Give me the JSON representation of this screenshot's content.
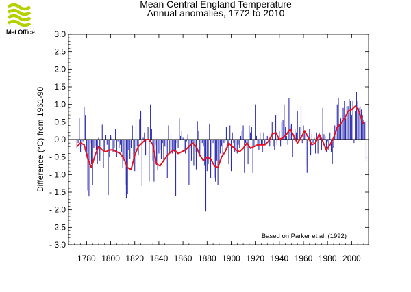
{
  "header": {
    "logo_text": "Met Office"
  },
  "chart_data": {
    "type": "bar",
    "title": "Mean Central England Temperature",
    "subtitle": "Annual anomalies, 1772 to 2010",
    "xlabel": "",
    "ylabel": "Difference (°C) from 1961-90",
    "xlim": [
      1765,
      2014
    ],
    "ylim": [
      -3.0,
      3.0
    ],
    "yticks": [
      3.0,
      2.5,
      2.0,
      1.5,
      1.0,
      0.5,
      0.0,
      -0.5,
      -1.0,
      -1.5,
      -2.0,
      -2.5,
      -3.0
    ],
    "yticklabels": [
      "3.0",
      "2.5",
      "2.0",
      "1.5",
      "1.0",
      "0.5",
      "0.0",
      "- 0.5",
      "- 1.0",
      "- 1.5",
      "- 2.0",
      "- 2.5",
      "- 3.0"
    ],
    "xticks": [
      1780,
      1800,
      1820,
      1840,
      1860,
      1880,
      1900,
      1920,
      1940,
      1960,
      1980,
      2000
    ],
    "annotation": "Based on Parker et al. (1992)",
    "grid": false,
    "bar_color": "#2c2cb0",
    "smooth_color": "#e8101a",
    "zero_line_color": "#000000",
    "series": [
      {
        "type": "bar",
        "x_start": 1772,
        "values": [
          -0.25,
          -0.1,
          0.6,
          -0.35,
          -0.2,
          -0.05,
          0.92,
          0.7,
          -0.35,
          -1.45,
          -1.62,
          -0.1,
          -0.7,
          -1.3,
          -0.25,
          -0.18,
          -0.3,
          -0.7,
          0.05,
          -0.6,
          -0.45,
          0.42,
          -0.8,
          -0.3,
          0.12,
          -0.15,
          -1.58,
          -0.5,
          0.12,
          0.05,
          -0.35,
          -0.25,
          0.3,
          -0.5,
          -0.05,
          -0.25,
          -0.15,
          -0.35,
          -0.8,
          -0.6,
          -1.3,
          -1.68,
          -1.55,
          -0.3,
          -0.55,
          -0.25,
          0.4,
          -0.6,
          -0.9,
          0.58,
          -0.2,
          -0.45,
          0.58,
          0.82,
          -1.32,
          0.05,
          0.2,
          -0.45,
          -0.05,
          0.36,
          -1.2,
          1.0,
          0.3,
          -0.6,
          -1.2,
          -0.15,
          -0.7,
          -0.88,
          -0.4,
          -0.3,
          -0.55,
          -0.1,
          -0.6,
          -0.2,
          -0.25,
          -1.1,
          0.4,
          -0.4,
          0.15,
          -0.4,
          -0.3,
          -0.35,
          -1.6,
          -0.1,
          -0.25,
          0.6,
          0.1,
          0.25,
          0.05,
          -0.35,
          -0.4,
          -0.05,
          0.15,
          -1.3,
          -0.25,
          -0.6,
          -0.05,
          -0.75,
          -0.35,
          -0.85,
          0.52,
          0.25,
          -0.45,
          -0.3,
          -0.1,
          -0.2,
          -0.75,
          -2.05,
          -0.9,
          -0.7,
          0.45,
          -1.1,
          -0.5,
          -0.1,
          -1.1,
          -1.2,
          -0.6,
          -1.3,
          -0.65,
          -0.4,
          -0.2,
          -0.5,
          -0.1,
          -0.05,
          0.35,
          -0.25,
          -0.7,
          0.4,
          -0.9,
          0.2,
          -0.1,
          -0.35,
          -0.15,
          -0.4,
          -0.15,
          -0.25,
          0.1,
          0.25,
          0.4,
          -0.95,
          -0.1,
          -0.25,
          -0.7,
          0.4,
          0.2,
          0.35,
          -0.95,
          -0.2,
          1.0,
          0.1,
          -0.2,
          -0.3,
          0.2,
          -0.15,
          -0.35,
          0.2,
          -0.15,
          0.05,
          0.1,
          -0.05,
          -0.2,
          -0.1,
          0.5,
          -0.2,
          -0.3,
          0.7,
          -0.15,
          0.1,
          0.25,
          -0.2,
          0.5,
          0.55,
          1.0,
          0.35,
          0.1,
          -0.15,
          1.18,
          0.4,
          0.45,
          -0.5,
          0.05,
          0.3,
          0.2,
          0.8,
          -0.05,
          0.35,
          0.95,
          -0.1,
          0.4,
          0.25,
          -0.75,
          -0.95,
          0.1,
          0.3,
          -0.45,
          0.15,
          -0.1,
          0.05,
          -0.4,
          0.2,
          -0.4,
          0.2,
          0.1,
          -0.3,
          0.9,
          0.15,
          0.1,
          -0.35,
          -0.05,
          -0.3,
          0.2,
          -0.35,
          -0.7,
          -0.25,
          0.4,
          0.15,
          1.0,
          1.18,
          0.4,
          0.6,
          0.45,
          0.9,
          1.1,
          0.6,
          0.95,
          0.95,
          1.15,
          1.1,
          0.7,
          1.1,
          -0.1,
          0.8,
          1.35,
          1.1,
          0.9,
          0.95,
          0.85,
          0.7,
          0.55,
          0.5,
          -0.62
        ]
      },
      {
        "type": "line",
        "name": "",
        "x": [
          1772,
          1775,
          1778,
          1781,
          1784,
          1787,
          1790,
          1793,
          1796,
          1799,
          1802,
          1805,
          1808,
          1811,
          1814,
          1817,
          1820,
          1823,
          1826,
          1829,
          1832,
          1835,
          1838,
          1841,
          1844,
          1847,
          1850,
          1853,
          1856,
          1859,
          1862,
          1865,
          1868,
          1871,
          1874,
          1877,
          1880,
          1883,
          1886,
          1889,
          1892,
          1895,
          1898,
          1901,
          1904,
          1907,
          1910,
          1913,
          1916,
          1919,
          1922,
          1925,
          1928,
          1931,
          1934,
          1937,
          1940,
          1943,
          1946,
          1949,
          1952,
          1955,
          1958,
          1961,
          1964,
          1967,
          1970,
          1973,
          1976,
          1979,
          1982,
          1985,
          1988,
          1991,
          1994,
          1997,
          2000,
          2003,
          2006,
          2009,
          2010
        ],
        "y": [
          -0.2,
          -0.1,
          -0.15,
          -0.55,
          -0.8,
          -0.45,
          -0.2,
          -0.3,
          -0.35,
          -0.3,
          -0.3,
          -0.35,
          -0.4,
          -0.55,
          -0.8,
          -0.85,
          -0.45,
          -0.2,
          -0.1,
          0.0,
          0.0,
          -0.15,
          -0.7,
          -0.75,
          -0.6,
          -0.45,
          -0.35,
          -0.3,
          -0.4,
          -0.35,
          -0.3,
          -0.2,
          -0.1,
          -0.2,
          -0.45,
          -0.6,
          -0.5,
          -0.55,
          -0.75,
          -0.8,
          -0.5,
          -0.35,
          -0.1,
          -0.2,
          -0.3,
          -0.35,
          -0.25,
          -0.1,
          -0.25,
          -0.2,
          -0.15,
          -0.15,
          -0.15,
          -0.05,
          0.15,
          0.2,
          0.0,
          0.05,
          0.15,
          0.3,
          0.1,
          -0.1,
          0.05,
          0.25,
          0.05,
          -0.15,
          -0.1,
          0.15,
          -0.05,
          -0.3,
          -0.15,
          0.05,
          0.35,
          0.45,
          0.6,
          0.8,
          0.85,
          0.95,
          0.8,
          0.5,
          0.45
        ]
      }
    ]
  }
}
